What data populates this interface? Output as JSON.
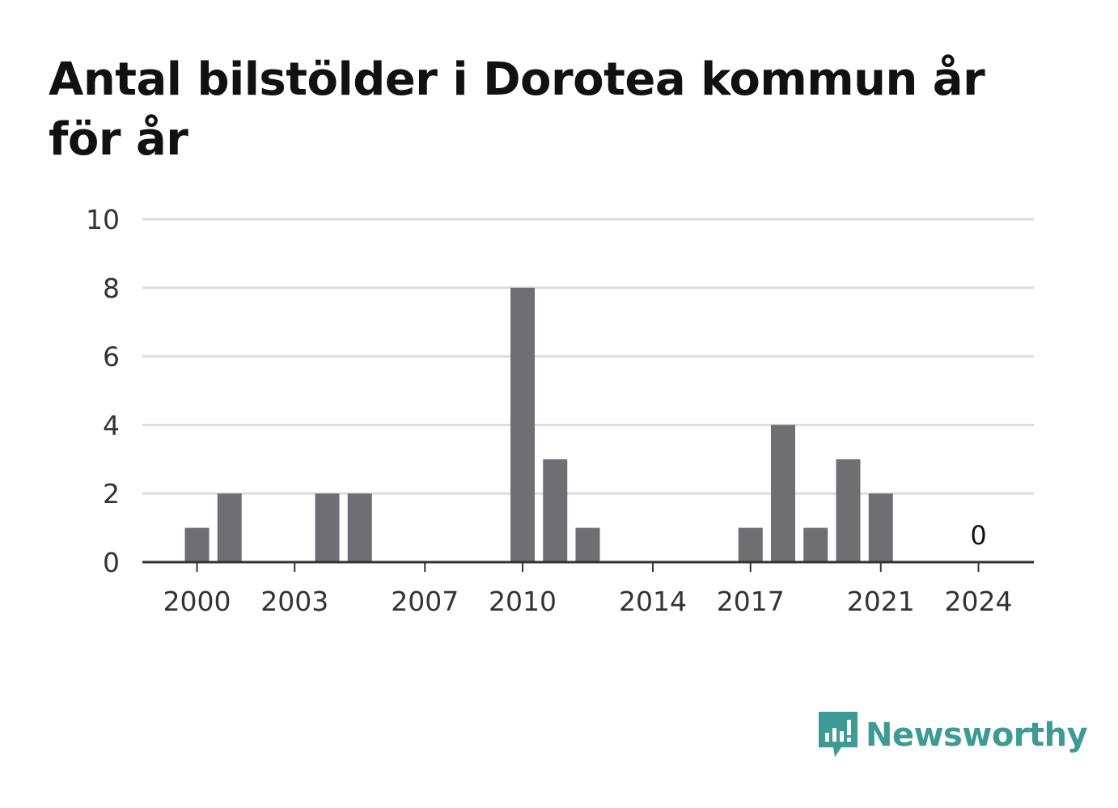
{
  "title": "Antal bilstölder i Dorotea kommun år för år",
  "colors": {
    "bar": "#6f6e72",
    "grid": "#dddddd",
    "axis": "#333333",
    "brand": "#3d9a94"
  },
  "chart_data": {
    "type": "bar",
    "title": "Antal bilstölder i Dorotea kommun år för år",
    "xlabel": "",
    "ylabel": "",
    "x": [
      2000,
      2001,
      2002,
      2003,
      2004,
      2005,
      2006,
      2007,
      2008,
      2009,
      2010,
      2011,
      2012,
      2013,
      2014,
      2015,
      2016,
      2017,
      2018,
      2019,
      2020,
      2021,
      2022,
      2023,
      2024
    ],
    "values": [
      1,
      2,
      0,
      0,
      2,
      2,
      0,
      0,
      0,
      0,
      8,
      3,
      1,
      0,
      0,
      0,
      0,
      1,
      4,
      1,
      3,
      2,
      0,
      0,
      0
    ],
    "x_ticks": [
      2000,
      2003,
      2007,
      2010,
      2014,
      2017,
      2021,
      2024
    ],
    "y_ticks": [
      0,
      2,
      4,
      6,
      8,
      10
    ],
    "ylim": [
      0,
      10
    ],
    "grid": true,
    "annotations": [
      {
        "x": 2024,
        "text": "0"
      }
    ]
  },
  "logo": {
    "text": "Newsworthy",
    "icon": "newsworthy-chart-icon"
  }
}
